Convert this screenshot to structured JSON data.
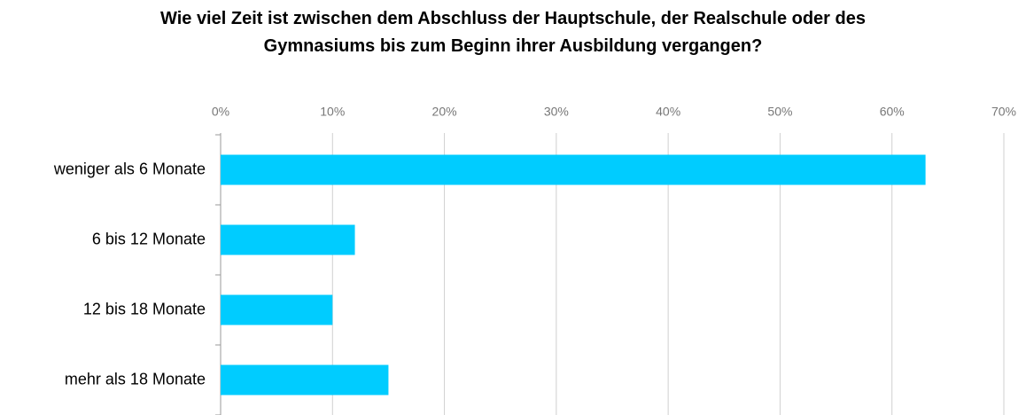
{
  "chart_data": {
    "type": "bar",
    "orientation": "horizontal",
    "title": "Wie viel Zeit ist zwischen dem Abschluss der Hauptschule, der Realschule oder des Gymnasiums bis zum Beginn ihrer Ausbildung vergangen?",
    "categories": [
      "weniger als 6 Monate",
      "6 bis 12 Monate",
      "12 bis 18 Monate",
      "mehr als 18 Monate"
    ],
    "values": [
      63,
      12,
      10,
      15
    ],
    "color": "#00ccff",
    "xlim": [
      0,
      70
    ],
    "xticks": [
      {
        "value": 0,
        "label": "0%"
      },
      {
        "value": 10,
        "label": "10%"
      },
      {
        "value": 20,
        "label": "20%"
      },
      {
        "value": 30,
        "label": "30%"
      },
      {
        "value": 40,
        "label": "40%"
      },
      {
        "value": 50,
        "label": "50%"
      },
      {
        "value": 60,
        "label": "60%"
      },
      {
        "value": 70,
        "label": "70%"
      }
    ],
    "grid": true
  }
}
